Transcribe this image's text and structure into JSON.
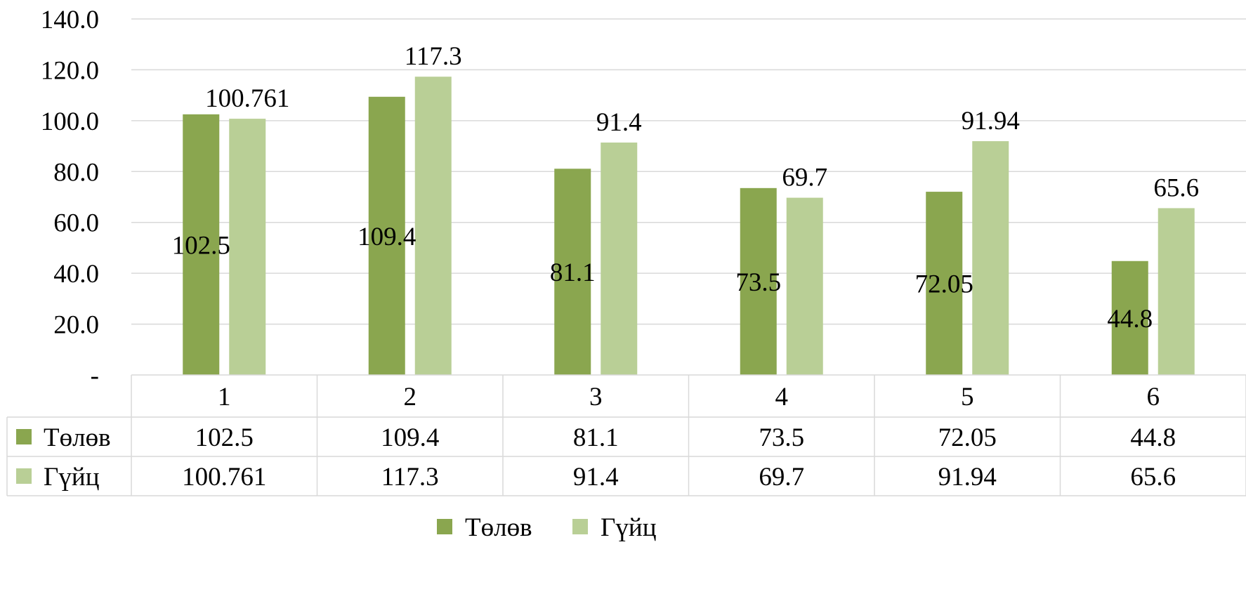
{
  "chart_data": {
    "type": "bar",
    "title": "",
    "xlabel": "",
    "ylabel": "",
    "categories": [
      "1",
      "2",
      "3",
      "4",
      "5",
      "6"
    ],
    "series": [
      {
        "name": "Төлөв",
        "color": "#8aa64f",
        "values": [
          102.5,
          109.4,
          81.1,
          73.5,
          72.05,
          44.8
        ],
        "labels": [
          "102.5",
          "109.4",
          "81.1",
          "73.5",
          "72.05",
          "44.8"
        ]
      },
      {
        "name": "Гүйц",
        "color": "#b9cf96",
        "values": [
          100.761,
          117.3,
          91.4,
          69.7,
          91.94,
          65.6
        ],
        "labels": [
          "100.761",
          "117.3",
          "91.4",
          "69.7",
          "91.94",
          "65.6"
        ]
      }
    ],
    "ylim": [
      0,
      140
    ],
    "yticks": [
      {
        "value": 0,
        "label": "-"
      },
      {
        "value": 20,
        "label": "20.0"
      },
      {
        "value": 40,
        "label": "40.0"
      },
      {
        "value": 60,
        "label": "60.0"
      },
      {
        "value": 80,
        "label": "80.0"
      },
      {
        "value": 100,
        "label": "100.0"
      },
      {
        "value": 120,
        "label": "120.0"
      },
      {
        "value": 140,
        "label": "140.0"
      }
    ],
    "grid": true,
    "data_table": true,
    "legend": "bottom-center"
  }
}
